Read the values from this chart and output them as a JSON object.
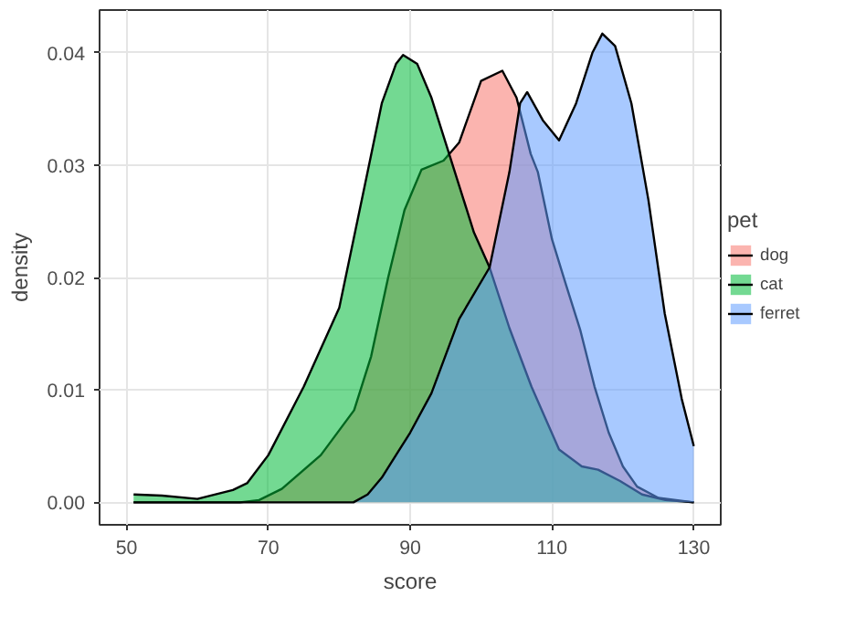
{
  "chart_data": {
    "type": "area",
    "xlabel": "score",
    "ylabel": "density",
    "legend_title": "pet",
    "xlim": [
      46.2,
      133.8
    ],
    "ylim": [
      -0.002,
      0.0438
    ],
    "xticks": [
      50,
      70,
      90,
      110,
      130
    ],
    "yticks": [
      {
        "value": 0,
        "label": "0.00"
      },
      {
        "value": 0.01,
        "label": "0.01"
      },
      {
        "value": 0.02,
        "label": "0.02"
      },
      {
        "value": 0.03,
        "label": "0.03"
      },
      {
        "value": 0.04,
        "label": "0.04"
      }
    ],
    "grid": true,
    "legend": "right",
    "series": [
      {
        "name": "dog",
        "color": "#f8766d",
        "x": [
          51,
          60,
          66,
          68.7,
          71.9,
          77.4,
          82.1,
          84.5,
          86.9,
          89.2,
          91.6,
          94.7,
          96.9,
          100,
          103,
          105,
          107,
          108,
          110,
          112,
          114,
          116,
          118,
          120,
          122,
          125,
          130
        ],
        "values": [
          0,
          0,
          0,
          0.0002,
          0.0012,
          0.0042,
          0.0082,
          0.013,
          0.02,
          0.026,
          0.0296,
          0.0304,
          0.032,
          0.0375,
          0.0384,
          0.036,
          0.031,
          0.0294,
          0.0234,
          0.0193,
          0.0153,
          0.0103,
          0.0062,
          0.0032,
          0.0014,
          0.0004,
          0
        ]
      },
      {
        "name": "cat",
        "color": "#00ba38",
        "x": [
          51,
          55,
          60,
          65,
          67,
          70,
          75,
          80,
          84,
          86,
          88,
          89,
          91,
          93,
          95,
          97,
          99,
          101.2,
          104,
          107.1,
          111,
          114.2,
          116.5,
          119.6,
          122.7,
          126,
          130
        ],
        "values": [
          0.0007,
          0.0006,
          0.0003,
          0.0011,
          0.0017,
          0.0042,
          0.0103,
          0.0173,
          0.0294,
          0.0355,
          0.039,
          0.0398,
          0.039,
          0.036,
          0.032,
          0.028,
          0.024,
          0.0209,
          0.0155,
          0.0103,
          0.0047,
          0.0032,
          0.0029,
          0.0019,
          0.0007,
          0.0002,
          0
        ]
      },
      {
        "name": "ferret",
        "color": "#619cff",
        "x": [
          51,
          70,
          82,
          84,
          86,
          88,
          90,
          93,
          96.9,
          101.2,
          104,
          105.5,
          106.5,
          108.7,
          111,
          113.4,
          115.7,
          117.1,
          118.9,
          121.2,
          123.6,
          125.9,
          128.3,
          130
        ],
        "values": [
          0,
          0,
          0,
          0.0007,
          0.0022,
          0.0042,
          0.0062,
          0.0097,
          0.0163,
          0.0209,
          0.0294,
          0.0355,
          0.0365,
          0.034,
          0.0322,
          0.0355,
          0.04,
          0.0417,
          0.0406,
          0.0355,
          0.0269,
          0.0168,
          0.0092,
          0.005
        ]
      }
    ]
  }
}
